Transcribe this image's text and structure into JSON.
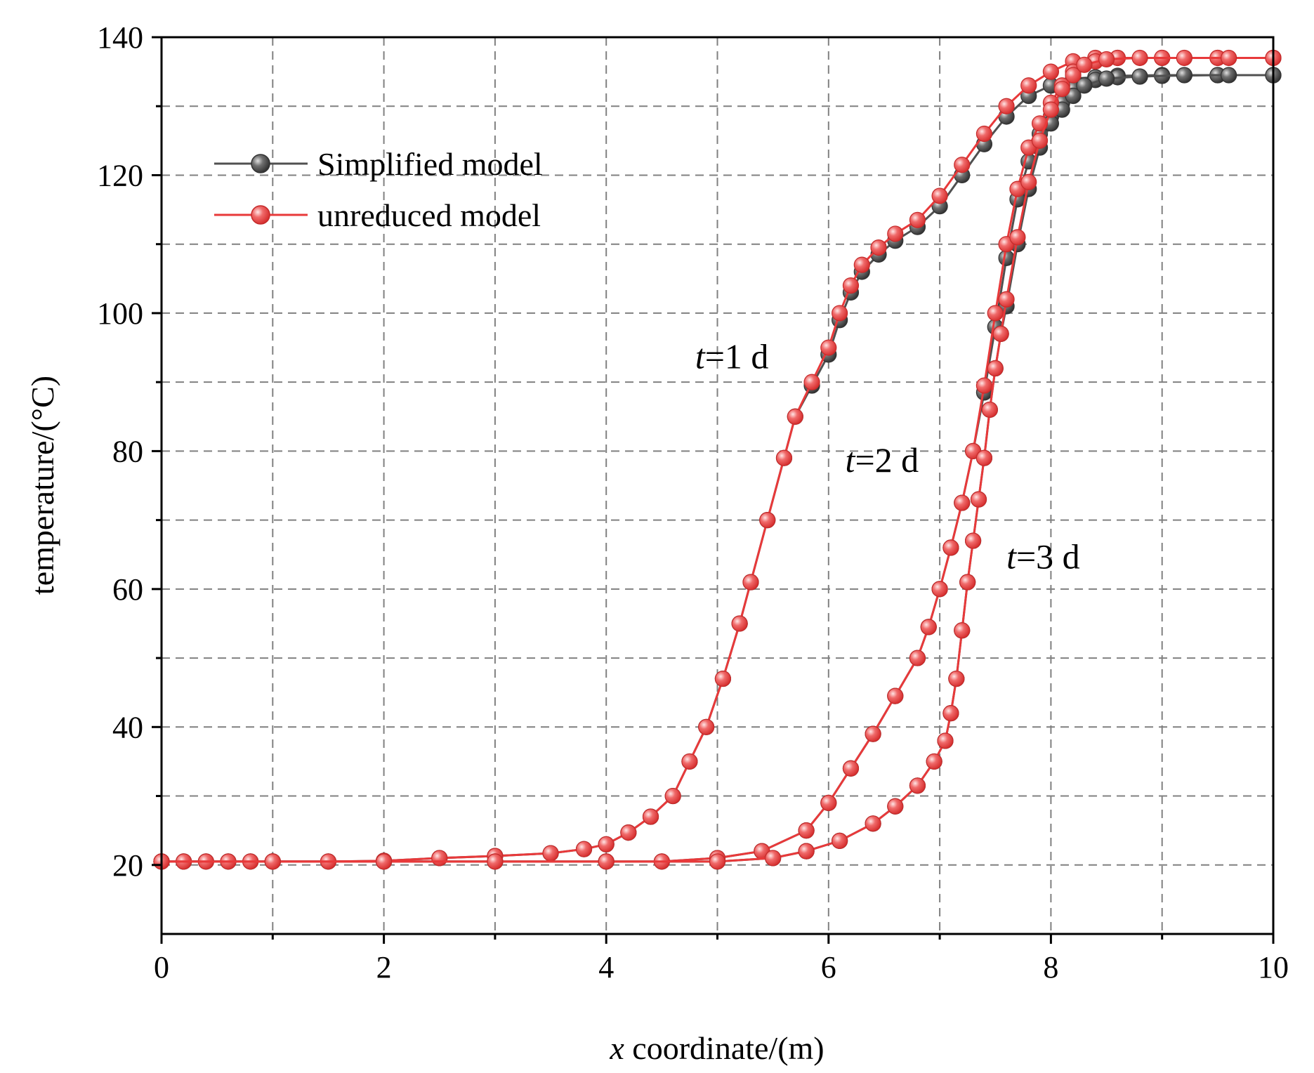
{
  "chart_data": {
    "type": "line",
    "xlabel_var": "x",
    "xlabel_text": " coordinate/(m)",
    "ylabel": "temperature/(°C)",
    "xlim": [
      0,
      10
    ],
    "ylim": [
      10,
      140
    ],
    "x_major_ticks": [
      0,
      2,
      4,
      6,
      8,
      10
    ],
    "x_tick_labels": [
      "0",
      "2",
      "4",
      "6",
      "8",
      "10"
    ],
    "x_minor_ticks": [
      1,
      3,
      5,
      7,
      9
    ],
    "y_major_ticks": [
      20,
      40,
      60,
      80,
      100,
      120,
      140
    ],
    "y_tick_labels": [
      "20",
      "40",
      "60",
      "80",
      "100",
      "120",
      "140"
    ],
    "y_minor_ticks": [
      30,
      50,
      70,
      90,
      110,
      130
    ],
    "grid": true,
    "legend_position": "top-left",
    "legend": [
      {
        "label": "Simplified model",
        "color": "#505050"
      },
      {
        "label": "unreduced model",
        "color": "#e8393a"
      }
    ],
    "annotations": [
      {
        "var": "t",
        "text": "=1 d",
        "x": 4.8,
        "y": 92
      },
      {
        "var": "t",
        "text": "=2 d",
        "x": 6.15,
        "y": 77
      },
      {
        "var": "t",
        "text": "=3 d",
        "x": 7.6,
        "y": 63
      }
    ],
    "series": [
      {
        "name": "Simplified model",
        "time": "t=1 d",
        "color": "#505050",
        "x": [
          0,
          0.2,
          0.4,
          0.6,
          0.8,
          1.0,
          1.5,
          2.0,
          2.5,
          3.0,
          3.5,
          3.8,
          4.0,
          4.2,
          4.4,
          4.6,
          4.75,
          4.9,
          5.05,
          5.2,
          5.3,
          5.45,
          5.6,
          5.7,
          5.85,
          6.0,
          6.1,
          6.2,
          6.3,
          6.45,
          6.6,
          6.8,
          7.0,
          7.2,
          7.4,
          7.6,
          7.8,
          8.0,
          8.2,
          8.4,
          8.6,
          9.0,
          9.5,
          10.0
        ],
        "y": [
          20.5,
          20.5,
          20.5,
          20.5,
          20.5,
          20.5,
          20.5,
          20.6,
          21,
          21.3,
          21.7,
          22.3,
          23,
          24.7,
          27,
          30,
          35,
          40,
          47,
          55,
          61,
          70,
          79,
          85,
          89.5,
          94,
          99,
          103,
          106,
          108.5,
          110.5,
          112.5,
          115.5,
          120,
          124.5,
          128.5,
          131.5,
          133,
          134,
          134.2,
          134.4,
          134.5,
          134.5,
          134.5
        ]
      },
      {
        "name": "unreduced model",
        "time": "t=1 d",
        "color": "#e8393a",
        "x": [
          0,
          0.2,
          0.4,
          0.6,
          0.8,
          1.0,
          1.5,
          2.0,
          2.5,
          3.0,
          3.5,
          3.8,
          4.0,
          4.2,
          4.4,
          4.6,
          4.75,
          4.9,
          5.05,
          5.2,
          5.3,
          5.45,
          5.6,
          5.7,
          5.85,
          6.0,
          6.1,
          6.2,
          6.3,
          6.45,
          6.6,
          6.8,
          7.0,
          7.2,
          7.4,
          7.6,
          7.8,
          8.0,
          8.2,
          8.4,
          8.6,
          9.0,
          9.5,
          10.0
        ],
        "y": [
          20.5,
          20.5,
          20.5,
          20.5,
          20.5,
          20.5,
          20.5,
          20.6,
          21,
          21.3,
          21.7,
          22.3,
          23,
          24.7,
          27,
          30,
          35,
          40,
          47,
          55,
          61,
          70,
          79,
          85,
          90,
          95,
          100,
          104,
          107,
          109.5,
          111.5,
          113.5,
          117,
          121.5,
          126,
          130,
          133,
          135,
          136.5,
          137,
          137,
          137,
          137,
          137
        ]
      },
      {
        "name": "Simplified model",
        "time": "t=2 d",
        "color": "#505050",
        "x": [
          0,
          1,
          2,
          3,
          4,
          4.5,
          5.0,
          5.4,
          5.8,
          6.0,
          6.2,
          6.4,
          6.6,
          6.8,
          6.9,
          7.0,
          7.1,
          7.2,
          7.3,
          7.4,
          7.5,
          7.6,
          7.7,
          7.8,
          7.9,
          8.0,
          8.1,
          8.2,
          8.4,
          8.6,
          9.0,
          9.5,
          10.0
        ],
        "y": [
          20.5,
          20.5,
          20.5,
          20.5,
          20.5,
          20.5,
          21,
          22,
          25,
          29,
          34,
          39,
          44.5,
          50,
          54.5,
          60,
          66,
          72.5,
          80,
          88.5,
          98,
          108,
          116.5,
          122,
          126,
          128.5,
          130.5,
          132.5,
          133.8,
          134.2,
          134.4,
          134.5,
          134.5
        ]
      },
      {
        "name": "unreduced model",
        "time": "t=2 d",
        "color": "#e8393a",
        "x": [
          0,
          1,
          2,
          3,
          4,
          4.5,
          5.0,
          5.4,
          5.8,
          6.0,
          6.2,
          6.4,
          6.6,
          6.8,
          6.9,
          7.0,
          7.1,
          7.2,
          7.3,
          7.4,
          7.5,
          7.6,
          7.7,
          7.8,
          7.9,
          8.0,
          8.1,
          8.2,
          8.4,
          8.6,
          9.0,
          9.5,
          10.0
        ],
        "y": [
          20.5,
          20.5,
          20.5,
          20.5,
          20.5,
          20.5,
          21,
          22,
          25,
          29,
          34,
          39,
          44.5,
          50,
          54.5,
          60,
          66,
          72.5,
          80,
          89.5,
          100,
          110,
          118,
          124,
          127.5,
          130.5,
          133,
          135,
          136.5,
          137,
          137,
          137,
          137
        ]
      },
      {
        "name": "Simplified model",
        "time": "t=3 d",
        "color": "#505050",
        "x": [
          0,
          1,
          2,
          3,
          4,
          5,
          5.5,
          5.8,
          6.1,
          6.4,
          6.6,
          6.8,
          6.95,
          7.05,
          7.1,
          7.15,
          7.2,
          7.25,
          7.3,
          7.35,
          7.4,
          7.45,
          7.5,
          7.55,
          7.6,
          7.7,
          7.8,
          7.9,
          8.0,
          8.1,
          8.2,
          8.3,
          8.5,
          8.8,
          9.2,
          9.6,
          10.0
        ],
        "y": [
          20.5,
          20.5,
          20.5,
          20.5,
          20.5,
          20.5,
          21,
          22,
          23.5,
          26,
          28.5,
          31.5,
          35,
          38,
          42,
          47,
          54,
          61,
          67,
          73,
          79,
          86,
          92,
          97,
          101,
          110,
          118,
          124,
          127.5,
          129.5,
          131.5,
          133,
          134,
          134.3,
          134.5,
          134.5,
          134.5
        ]
      },
      {
        "name": "unreduced model",
        "time": "t=3 d",
        "color": "#e8393a",
        "x": [
          0,
          1,
          2,
          3,
          4,
          5,
          5.5,
          5.8,
          6.1,
          6.4,
          6.6,
          6.8,
          6.95,
          7.05,
          7.1,
          7.15,
          7.2,
          7.25,
          7.3,
          7.35,
          7.4,
          7.45,
          7.5,
          7.55,
          7.6,
          7.7,
          7.8,
          7.9,
          8.0,
          8.1,
          8.2,
          8.3,
          8.5,
          8.8,
          9.2,
          9.6,
          10.0
        ],
        "y": [
          20.5,
          20.5,
          20.5,
          20.5,
          20.5,
          20.5,
          21,
          22,
          23.5,
          26,
          28.5,
          31.5,
          35,
          38,
          42,
          47,
          54,
          61,
          67,
          73,
          79,
          86,
          92,
          97,
          102,
          111,
          119,
          125,
          129.5,
          132.5,
          134.5,
          136,
          136.8,
          137,
          137,
          137,
          137
        ]
      }
    ]
  }
}
